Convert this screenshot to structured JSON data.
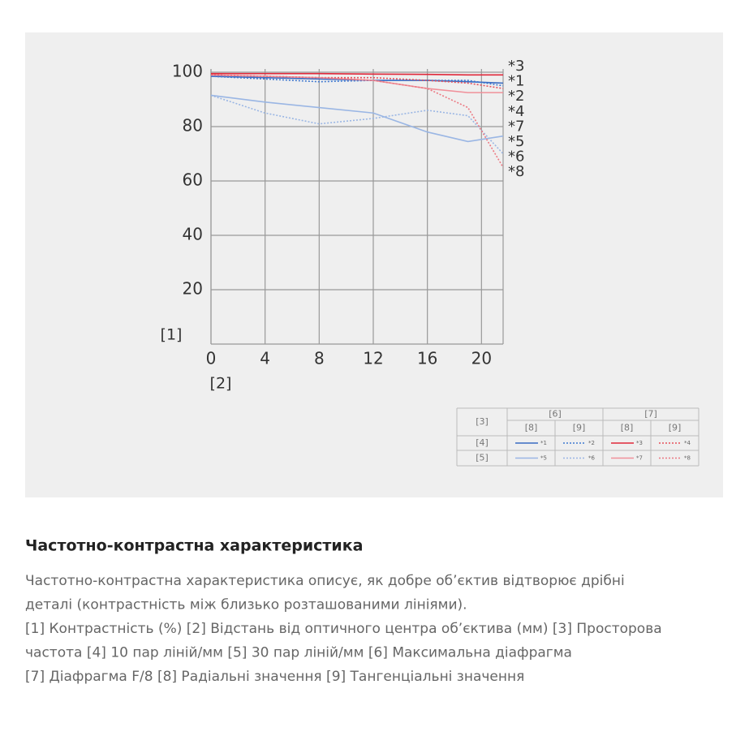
{
  "chart_data": {
    "type": "line",
    "x_label": "[2]",
    "y_label": "[1]",
    "xlim": [
      0,
      21.6
    ],
    "ylim": [
      0,
      100
    ],
    "xticks": [
      0,
      4,
      8,
      12,
      16,
      20
    ],
    "yticks": [
      20,
      40,
      60,
      80,
      100
    ],
    "grid": true,
    "x": [
      0,
      4,
      8,
      12,
      16,
      19,
      21.6
    ],
    "series": [
      {
        "name": "*1",
        "color": "#3a6cc2",
        "style": "solid",
        "values": [
          98.5,
          98,
          97.5,
          97,
          97,
          96.5,
          96
        ]
      },
      {
        "name": "*2",
        "color": "#3f78d0",
        "style": "dotted",
        "values": [
          98.5,
          97.5,
          96.5,
          97,
          97,
          97,
          95
        ]
      },
      {
        "name": "*3",
        "color": "#e0283a",
        "style": "solid",
        "values": [
          99.5,
          99.5,
          99.5,
          99.3,
          99.2,
          99,
          99
        ]
      },
      {
        "name": "*4",
        "color": "#e5505c",
        "style": "dotted",
        "values": [
          99,
          98.5,
          98,
          98,
          97,
          96,
          94
        ]
      },
      {
        "name": "*5",
        "color": "#9ab6e4",
        "style": "solid",
        "values": [
          91.5,
          89,
          87,
          85,
          78,
          74.5,
          76.5
        ]
      },
      {
        "name": "*6",
        "color": "#9ab6e4",
        "style": "dotted",
        "values": [
          91.5,
          85,
          81,
          83,
          86,
          84,
          70
        ]
      },
      {
        "name": "*7",
        "color": "#f0909a",
        "style": "solid",
        "values": [
          99,
          98.5,
          98,
          97,
          94,
          92.5,
          92.5
        ]
      },
      {
        "name": "*8",
        "color": "#ec7882",
        "style": "dotted",
        "values": [
          99,
          98.5,
          98,
          97,
          94,
          87,
          65
        ]
      }
    ],
    "legend_table": {
      "corner": "[3]",
      "groups": [
        "[6]",
        "[7]"
      ],
      "subheaders": [
        "[8]",
        "[9]",
        "[8]",
        "[9]"
      ],
      "rows": [
        "[4]",
        "[5]"
      ]
    }
  },
  "heading": "Частотно-контрастна характеристика",
  "description": [
    "Частотно-контрастна характеристика описує, як добре об’єктив відтворює дрібні",
    "деталі (контрастність між близько розташованими лініями).",
    "[1] Контрастність (%) [2] Відстань від оптичного центра об’єктива (мм) [3] Просторова",
    "частота [4] 10 пар ліній/мм [5] 30 пар ліній/мм [6] Максимальна діафрагма",
    "[7] Діафрагма F/8 [8] Радіальні значення [9] Тангенціальні значення"
  ]
}
